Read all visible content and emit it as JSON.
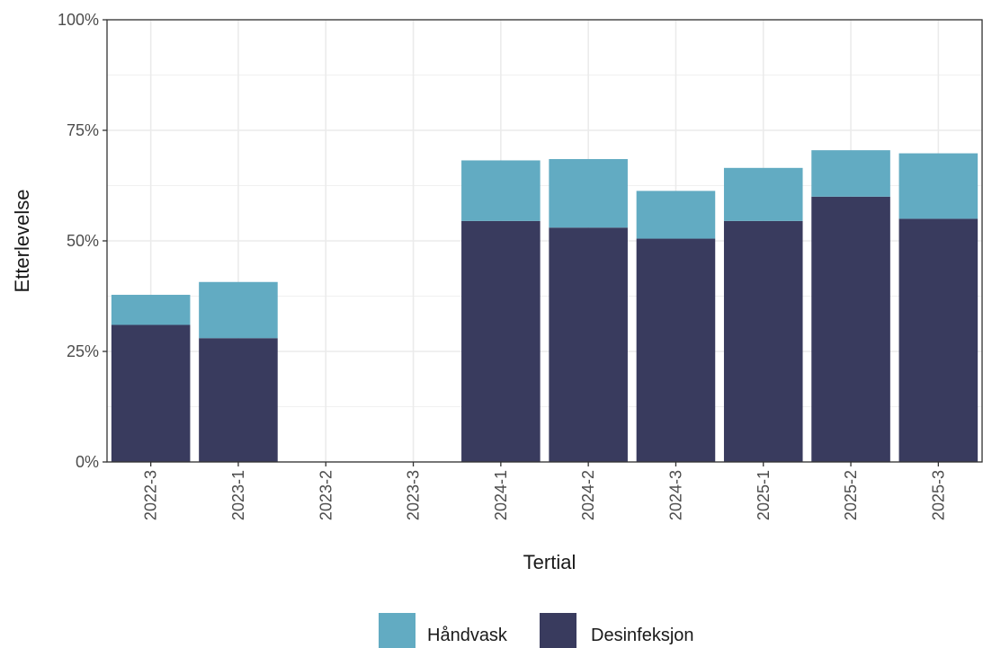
{
  "chart_data": {
    "type": "bar",
    "stacked": true,
    "xlabel": "Tertial",
    "ylabel": "Etterlevelse",
    "categories": [
      "2022-3",
      "2023-1",
      "2023-2",
      "2023-3",
      "2024-1",
      "2024-2",
      "2024-3",
      "2025-1",
      "2025-2",
      "2025-3"
    ],
    "series": [
      {
        "name": "Desinfeksjon",
        "color": "#393b5e",
        "values": [
          0.31,
          0.28,
          0,
          0,
          0.545,
          0.53,
          0.505,
          0.545,
          0.6,
          0.55
        ]
      },
      {
        "name": "Håndvask",
        "color": "#62abc2",
        "values": [
          0.068,
          0.127,
          0,
          0,
          0.137,
          0.155,
          0.108,
          0.12,
          0.105,
          0.148
        ]
      }
    ],
    "ylim": [
      0,
      1
    ],
    "yticks": [
      0,
      0.25,
      0.5,
      0.75,
      1
    ],
    "ytick_labels": [
      "0%",
      "25%",
      "50%",
      "75%",
      "100%"
    ],
    "grid": true,
    "legend_position": "bottom",
    "legend_order": [
      "Håndvask",
      "Desinfeksjon"
    ],
    "x_tick_rotation": "vertical"
  }
}
